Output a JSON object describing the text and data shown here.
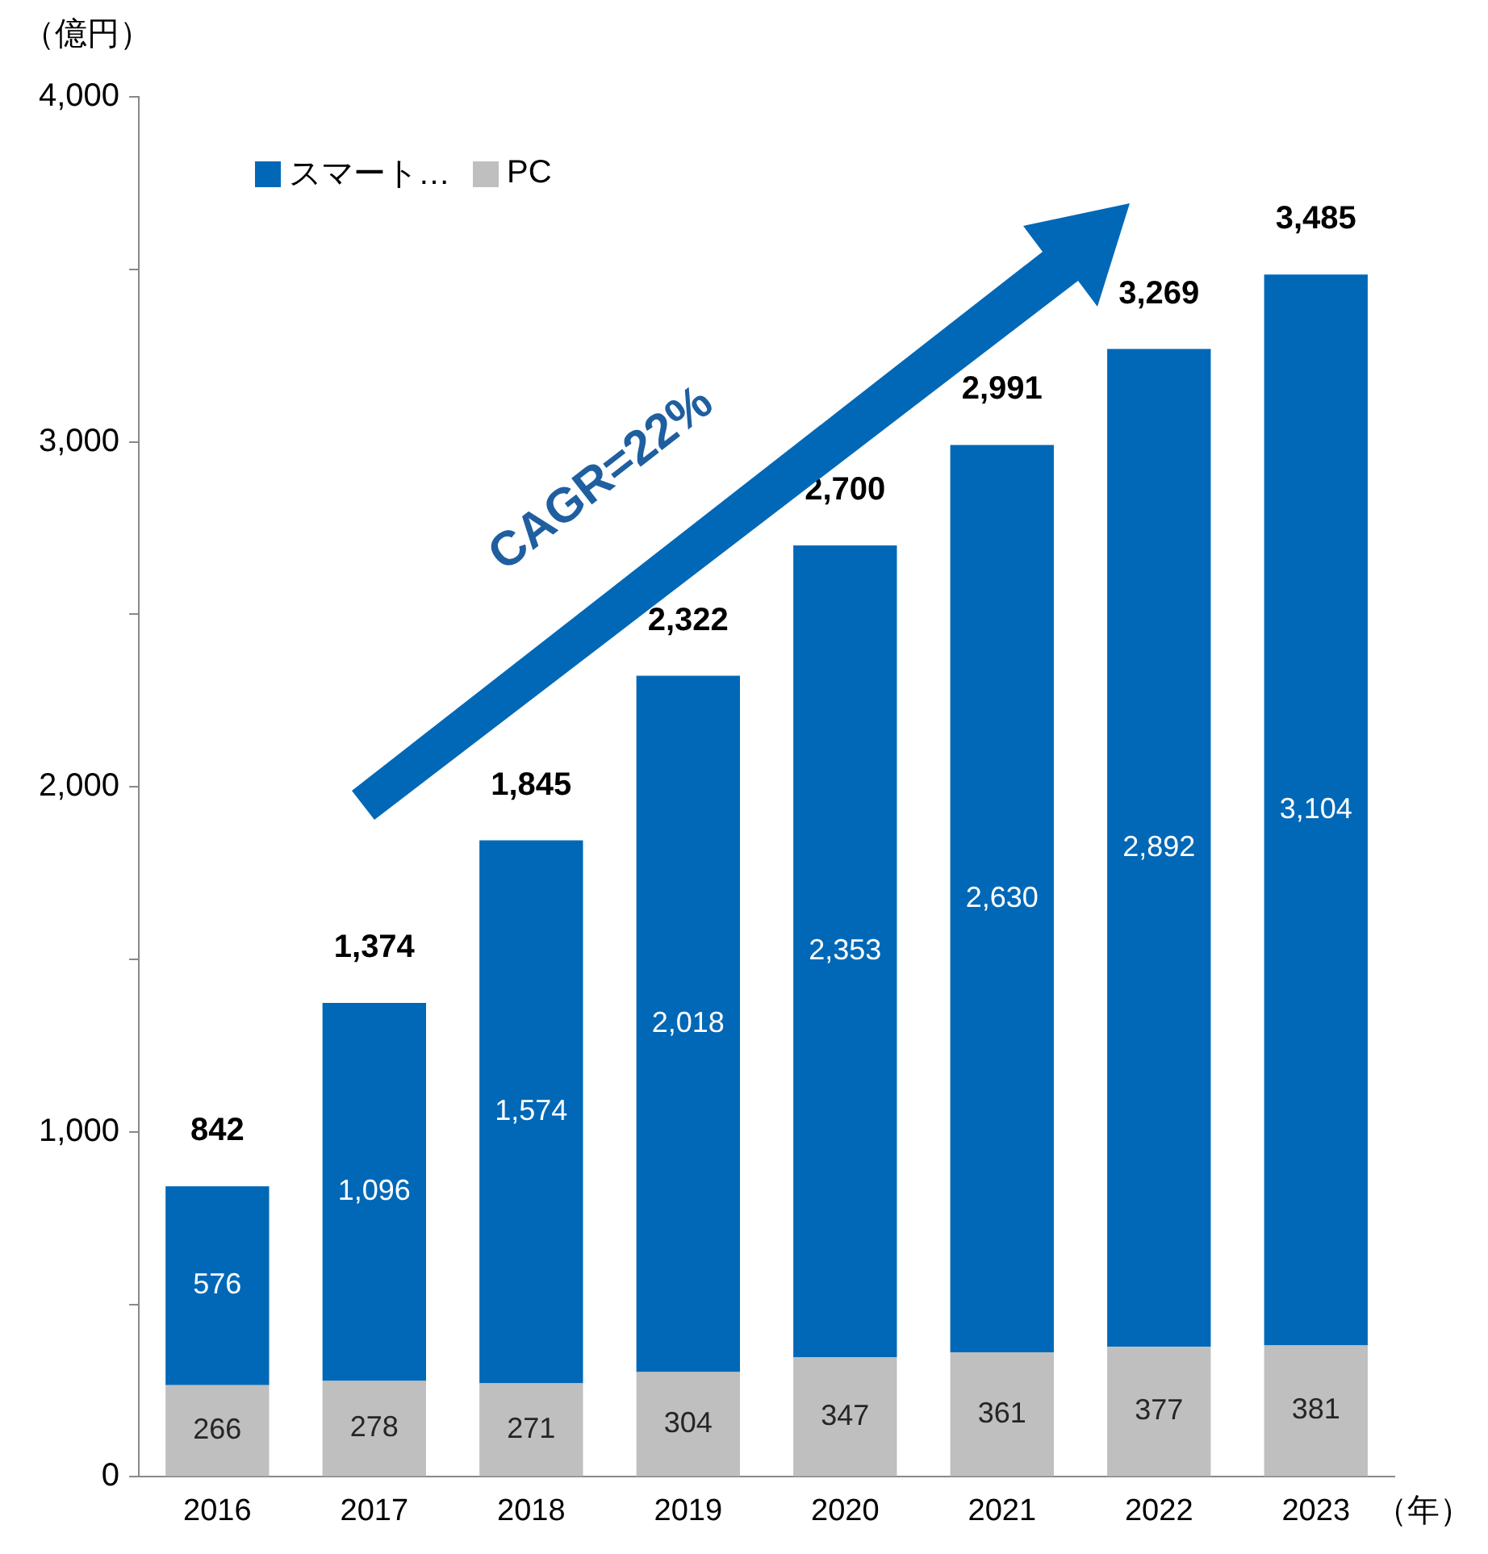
{
  "chart_data": {
    "type": "bar",
    "stacked": true,
    "ylabel": "（億円）",
    "xlabel": "（年）",
    "categories": [
      "2016",
      "2017",
      "2018",
      "2019",
      "2020",
      "2021",
      "2022",
      "2023"
    ],
    "series": [
      {
        "name": "PC",
        "color": "#bfbfbf",
        "values": [
          266,
          278,
          271,
          304,
          347,
          361,
          377,
          381
        ],
        "value_labels": [
          "266",
          "278",
          "271",
          "304",
          "347",
          "361",
          "377",
          "381"
        ]
      },
      {
        "name": "スマート…",
        "color": "#0068b7",
        "values": [
          576,
          1096,
          1574,
          2018,
          2353,
          2630,
          2892,
          3104
        ],
        "value_labels": [
          "576",
          "1,096",
          "1,574",
          "2,018",
          "2,353",
          "2,630",
          "2,892",
          "3,104"
        ]
      }
    ],
    "totals": [
      "842",
      "1,374",
      "1,845",
      "2,322",
      "2,700",
      "2,991",
      "3,269",
      "3,485"
    ],
    "ylim": [
      0,
      4000
    ],
    "yticks": [
      {
        "value": 0,
        "label": "0"
      },
      {
        "value": 500,
        "label": null
      },
      {
        "value": 1000,
        "label": "1,000"
      },
      {
        "value": 1500,
        "label": null
      },
      {
        "value": 2000,
        "label": "2,000"
      },
      {
        "value": 2500,
        "label": null
      },
      {
        "value": 3000,
        "label": "3,000"
      },
      {
        "value": 3500,
        "label": null
      },
      {
        "value": 4000,
        "label": "4,000"
      }
    ],
    "grid": false,
    "legend": "top left",
    "annotations": [
      "CAGR=22%"
    ]
  }
}
